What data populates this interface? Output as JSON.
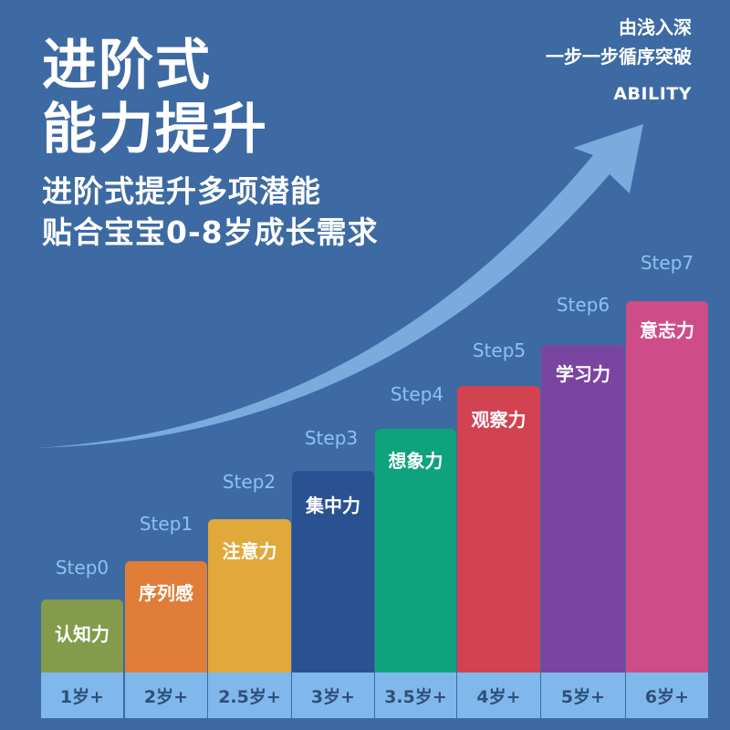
{
  "headline": {
    "line1": "进阶式",
    "line2": "能力提升"
  },
  "subheadline": {
    "line1": "进阶式提升多项潜能",
    "line2": "贴合宝宝0-8岁成长需求"
  },
  "tagline": {
    "line1": "由浅入深",
    "line2": "一步一步循序突破",
    "line3": "ABILITY"
  },
  "colors": {
    "background": "#3d6aa3",
    "arrow": "#7fb2e3",
    "step_label": "#8fc1ee",
    "age_cell": "#80b8ec",
    "age_text": "#2f4f7a"
  },
  "steps": [
    {
      "step": "Step0",
      "ability": "认知力",
      "age": "1岁+",
      "color": "#839b4a"
    },
    {
      "step": "Step1",
      "ability": "序列感",
      "age": "2岁+",
      "color": "#e07d38"
    },
    {
      "step": "Step2",
      "ability": "注意力",
      "age": "2.5岁+",
      "color": "#e1a83b"
    },
    {
      "step": "Step3",
      "ability": "集中力",
      "age": "3岁+",
      "color": "#2a5292"
    },
    {
      "step": "Step4",
      "ability": "想象力",
      "age": "3.5岁+",
      "color": "#0ea37d"
    },
    {
      "step": "Step5",
      "ability": "观察力",
      "age": "4岁+",
      "color": "#d34250"
    },
    {
      "step": "Step6",
      "ability": "学习力",
      "age": "5岁+",
      "color": "#7a45a0"
    },
    {
      "step": "Step7",
      "ability": "意志力",
      "age": "6岁+",
      "color": "#ce4c87"
    }
  ]
}
